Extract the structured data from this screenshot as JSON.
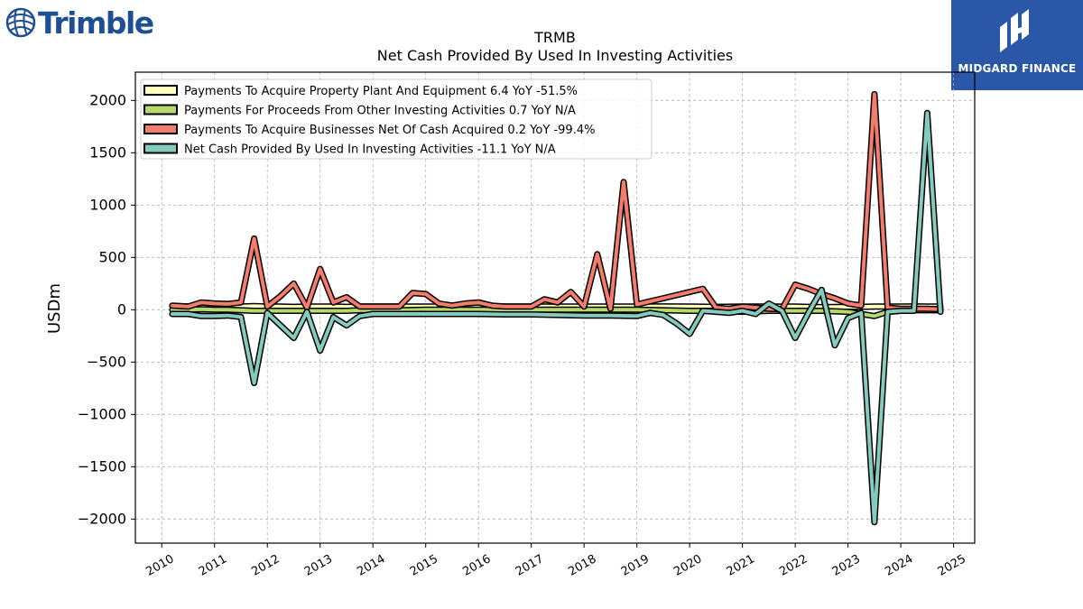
{
  "header": {
    "left_logo_text": "Trimble",
    "right_logo_text": "MIDGARD FINANCE"
  },
  "chart_data": {
    "type": "line",
    "title": "TRMB",
    "subtitle": "Net Cash Provided By Used In Investing Activities",
    "xlabel": "",
    "ylabel": "USDm",
    "xlim": [
      2009.5,
      2025.4
    ],
    "ylim": [
      -2230,
      2270
    ],
    "xticks": [
      "2010",
      "2011",
      "2012",
      "2013",
      "2014",
      "2015",
      "2016",
      "2017",
      "2018",
      "2019",
      "2020",
      "2021",
      "2022",
      "2023",
      "2024",
      "2025"
    ],
    "yticks": [
      -2000,
      -1500,
      -1000,
      -500,
      0,
      500,
      1000,
      1500,
      2000
    ],
    "yticklabels": [
      "−2000",
      "−1500",
      "−1000",
      "−500",
      "0",
      "500",
      "1000",
      "1500",
      "2000"
    ],
    "grid": true,
    "legend_position": "top-left",
    "series": [
      {
        "name": "Payments To Acquire Property Plant And Equipment  6.4 YoY -51.5%",
        "color": "#ffffc0",
        "x": [
          2010.2,
          2010.5,
          2010.75,
          2011.0,
          2011.25,
          2011.5,
          2011.75,
          2012.0,
          2012.25,
          2012.5,
          2012.75,
          2013.0,
          2013.25,
          2013.5,
          2013.75,
          2014.0,
          2014.5,
          2015.0,
          2015.5,
          2016.0,
          2016.5,
          2017.0,
          2017.5,
          2018.0,
          2018.5,
          2019.0,
          2019.5,
          2020.0,
          2020.5,
          2021.0,
          2021.5,
          2022.0,
          2022.5,
          2023.0,
          2023.25,
          2023.5,
          2023.75,
          2024.0,
          2024.25,
          2024.5,
          2024.75
        ],
        "values": [
          35,
          32,
          30,
          30,
          28,
          30,
          35,
          30,
          30,
          28,
          30,
          30,
          30,
          28,
          30,
          30,
          30,
          30,
          30,
          30,
          30,
          30,
          30,
          30,
          30,
          30,
          32,
          30,
          28,
          30,
          30,
          30,
          25,
          28,
          28,
          30,
          30,
          30,
          32,
          30,
          30
        ]
      },
      {
        "name": "Payments For Proceeds From Other Investing Activities  0.7 YoY N/A",
        "color": "#b5d96b",
        "x": [
          2010.2,
          2010.5,
          2010.75,
          2011.0,
          2011.25,
          2011.5,
          2011.75,
          2012.0,
          2012.25,
          2012.5,
          2012.75,
          2013.0,
          2013.25,
          2013.5,
          2013.75,
          2014.0,
          2014.5,
          2015.0,
          2015.5,
          2016.0,
          2016.5,
          2017.0,
          2017.5,
          2018.0,
          2018.5,
          2019.0,
          2019.5,
          2020.0,
          2020.5,
          2021.0,
          2021.5,
          2022.0,
          2022.5,
          2023.0,
          2023.25,
          2023.5,
          2023.75,
          2024.0,
          2024.25,
          2024.5,
          2024.75
        ],
        "values": [
          0,
          0,
          5,
          0,
          0,
          -5,
          -10,
          -10,
          -10,
          -10,
          -10,
          -10,
          -10,
          -10,
          -5,
          -5,
          -5,
          0,
          0,
          0,
          0,
          0,
          0,
          0,
          0,
          0,
          -5,
          -10,
          -10,
          -20,
          -10,
          -10,
          -10,
          -20,
          -40,
          -60,
          -20,
          -10,
          -5,
          -5,
          -5
        ]
      },
      {
        "name": "Payments To Acquire Businesses Net Of Cash Acquired  0.2 YoY -99.4%",
        "color": "#f47c6c",
        "x": [
          2010.2,
          2010.5,
          2010.75,
          2011.0,
          2011.25,
          2011.5,
          2011.75,
          2012.0,
          2012.25,
          2012.5,
          2012.75,
          2013.0,
          2013.25,
          2013.5,
          2013.75,
          2014.0,
          2014.25,
          2014.5,
          2014.75,
          2015.0,
          2015.25,
          2015.5,
          2015.75,
          2016.0,
          2016.25,
          2016.5,
          2016.75,
          2017.0,
          2017.25,
          2017.5,
          2017.75,
          2018.0,
          2018.25,
          2018.5,
          2018.75,
          2019.0,
          2019.25,
          2019.5,
          2019.75,
          2020.0,
          2020.25,
          2020.5,
          2020.75,
          2021.0,
          2021.25,
          2021.5,
          2021.75,
          2022.0,
          2022.25,
          2022.5,
          2022.75,
          2023.0,
          2023.25,
          2023.5,
          2023.75,
          2024.0,
          2024.25,
          2024.5,
          2024.75
        ],
        "values": [
          40,
          30,
          70,
          60,
          55,
          70,
          680,
          30,
          130,
          250,
          20,
          390,
          70,
          120,
          30,
          30,
          30,
          30,
          160,
          150,
          60,
          40,
          60,
          70,
          40,
          30,
          30,
          30,
          100,
          70,
          170,
          30,
          530,
          10,
          1220,
          50,
          80,
          110,
          140,
          170,
          200,
          20,
          10,
          30,
          20,
          10,
          5,
          240,
          200,
          150,
          110,
          60,
          40,
          2060,
          20,
          10,
          10,
          10,
          5
        ]
      },
      {
        "name": "Net Cash Provided By Used In Investing Activities  -11.1 YoY N/A",
        "color": "#84cbbe",
        "x": [
          2010.2,
          2010.5,
          2010.75,
          2011.0,
          2011.25,
          2011.5,
          2011.75,
          2012.0,
          2012.25,
          2012.5,
          2012.75,
          2013.0,
          2013.25,
          2013.5,
          2013.75,
          2014.0,
          2014.5,
          2015.0,
          2015.5,
          2016.0,
          2016.5,
          2017.0,
          2017.5,
          2018.0,
          2018.5,
          2019.0,
          2019.25,
          2019.5,
          2019.75,
          2020.0,
          2020.25,
          2020.5,
          2020.75,
          2021.0,
          2021.25,
          2021.5,
          2021.75,
          2022.0,
          2022.25,
          2022.5,
          2022.75,
          2023.0,
          2023.25,
          2023.5,
          2023.75,
          2024.0,
          2024.25,
          2024.5,
          2024.75
        ],
        "values": [
          -40,
          -40,
          -60,
          -60,
          -55,
          -70,
          -700,
          -30,
          -150,
          -270,
          -20,
          -390,
          -70,
          -150,
          -60,
          -40,
          -40,
          -40,
          -40,
          -40,
          -45,
          -45,
          -50,
          -55,
          -55,
          -60,
          -30,
          -50,
          -130,
          -230,
          -10,
          -20,
          -30,
          -10,
          -40,
          60,
          -10,
          -270,
          -30,
          190,
          -340,
          -80,
          -30,
          -2030,
          -20,
          -10,
          -10,
          1880,
          -20
        ]
      }
    ]
  }
}
